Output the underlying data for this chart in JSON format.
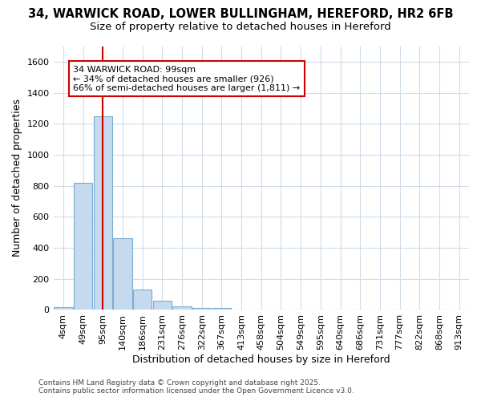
{
  "title_line1": "34, WARWICK ROAD, LOWER BULLINGHAM, HEREFORD, HR2 6FB",
  "title_line2": "Size of property relative to detached houses in Hereford",
  "xlabel": "Distribution of detached houses by size in Hereford",
  "ylabel": "Number of detached properties",
  "bar_color": "#c5d9ef",
  "bar_edge_color": "#7aadd4",
  "background_color": "#ffffff",
  "grid_color": "#d0dce8",
  "categories": [
    "4sqm",
    "49sqm",
    "95sqm",
    "140sqm",
    "186sqm",
    "231sqm",
    "276sqm",
    "322sqm",
    "367sqm",
    "413sqm",
    "458sqm",
    "504sqm",
    "549sqm",
    "595sqm",
    "640sqm",
    "686sqm",
    "731sqm",
    "777sqm",
    "822sqm",
    "868sqm",
    "913sqm"
  ],
  "bar_heights": [
    20,
    820,
    1250,
    460,
    130,
    60,
    25,
    15,
    15,
    0,
    0,
    0,
    0,
    0,
    0,
    0,
    0,
    0,
    0,
    0,
    0
  ],
  "vline_x": 2.0,
  "vline_color": "#cc0000",
  "ylim": [
    0,
    1700
  ],
  "yticks": [
    0,
    200,
    400,
    600,
    800,
    1000,
    1200,
    1400,
    1600
  ],
  "annotation_text": "34 WARWICK ROAD: 99sqm\n← 34% of detached houses are smaller (926)\n66% of semi-detached houses are larger (1,811) →",
  "footer_line1": "Contains HM Land Registry data © Crown copyright and database right 2025.",
  "footer_line2": "Contains public sector information licensed under the Open Government Licence v3.0.",
  "title_fontsize": 10.5,
  "subtitle_fontsize": 9.5,
  "axis_label_fontsize": 9,
  "tick_fontsize": 8,
  "annotation_fontsize": 8,
  "footer_fontsize": 6.5
}
